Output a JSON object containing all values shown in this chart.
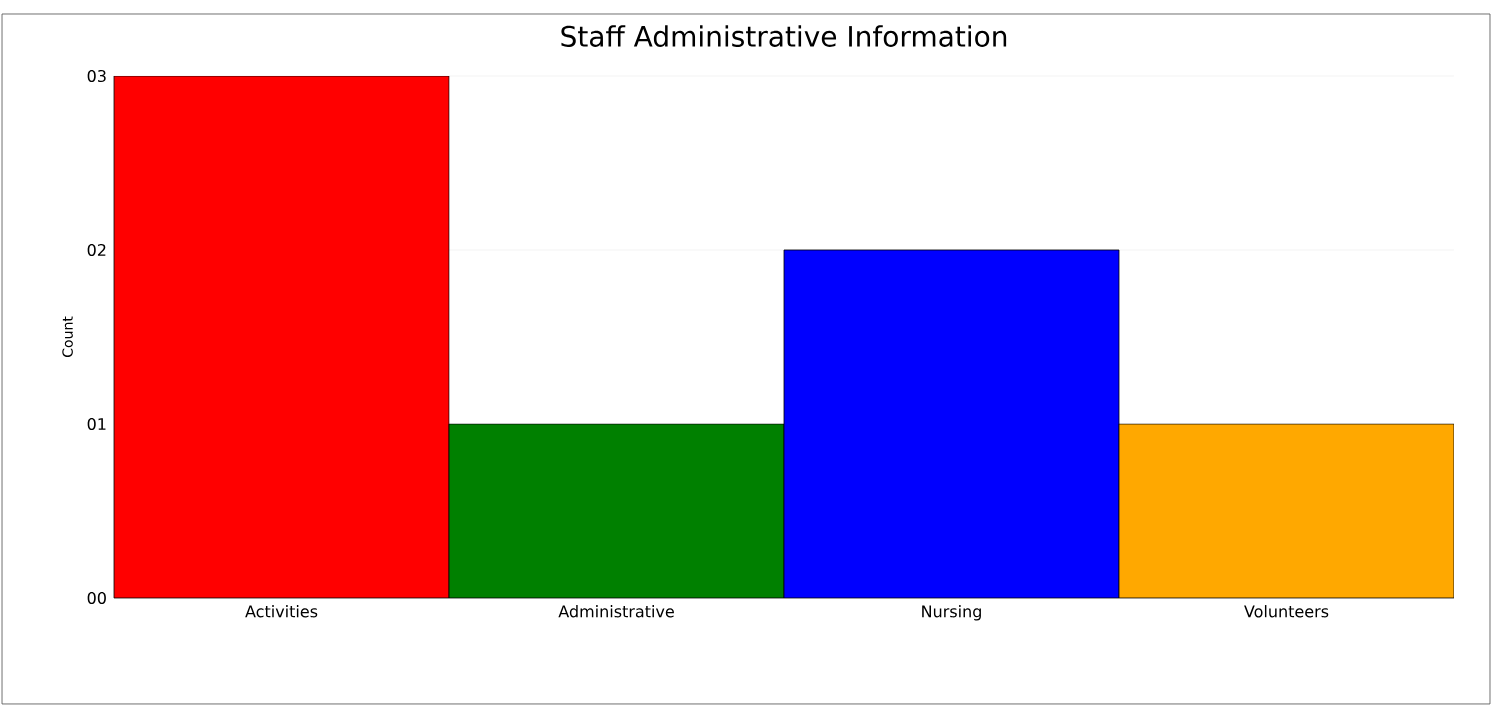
{
  "chart_data": {
    "type": "bar",
    "title": "Staff Administrative Information",
    "ylabel": "Count",
    "categories": [
      "Activities",
      "Administrative",
      "Nursing",
      "Volunteers"
    ],
    "values": [
      3,
      1,
      2,
      1
    ],
    "colors": [
      "#ff0000",
      "#008000",
      "#0000ff",
      "#ffa800"
    ],
    "ylim": [
      0,
      3
    ],
    "yticks": [
      {
        "value": 0,
        "label": "00"
      },
      {
        "value": 1,
        "label": "01"
      },
      {
        "value": 2,
        "label": "02"
      },
      {
        "value": 3,
        "label": "03"
      }
    ],
    "grid": "y"
  }
}
